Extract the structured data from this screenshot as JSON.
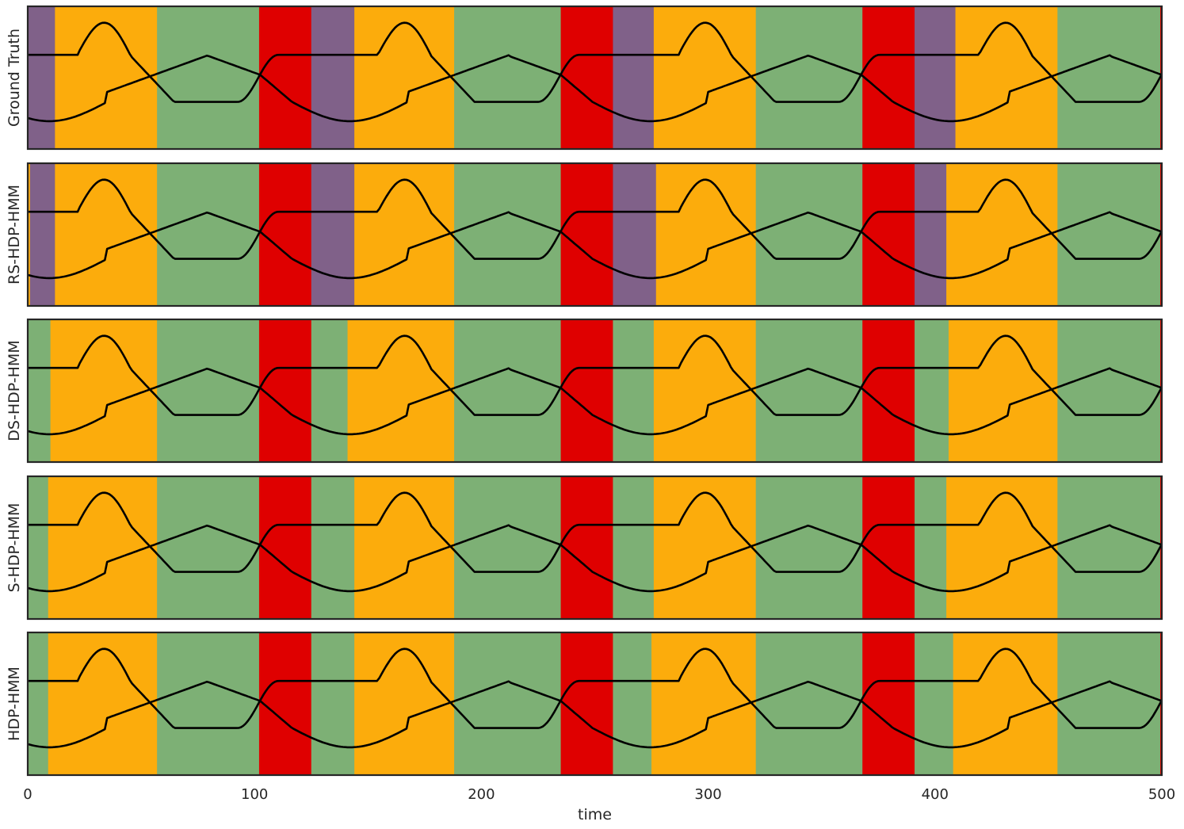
{
  "chart_data": {
    "type": "area",
    "xlabel": "time",
    "xlim": [
      0,
      500
    ],
    "x_ticks": [
      "0",
      "100",
      "200",
      "300",
      "400",
      "500"
    ],
    "state_colors": {
      "purple": "#806189",
      "orange": "#fcac0c",
      "green": "#7db075",
      "red": "#df0000",
      "line": "#000000",
      "frame": "#262626"
    },
    "panels": [
      {
        "ylabel": "Ground Truth",
        "segments": [
          {
            "start": 0,
            "end": 12,
            "state": "purple"
          },
          {
            "start": 12,
            "end": 57,
            "state": "orange"
          },
          {
            "start": 57,
            "end": 102,
            "state": "green"
          },
          {
            "start": 102,
            "end": 125,
            "state": "red"
          },
          {
            "start": 125,
            "end": 144,
            "state": "purple"
          },
          {
            "start": 144,
            "end": 188,
            "state": "orange"
          },
          {
            "start": 188,
            "end": 235,
            "state": "green"
          },
          {
            "start": 235,
            "end": 258,
            "state": "red"
          },
          {
            "start": 258,
            "end": 276,
            "state": "purple"
          },
          {
            "start": 276,
            "end": 321,
            "state": "orange"
          },
          {
            "start": 321,
            "end": 368,
            "state": "green"
          },
          {
            "start": 368,
            "end": 391,
            "state": "red"
          },
          {
            "start": 391,
            "end": 409,
            "state": "purple"
          },
          {
            "start": 409,
            "end": 454,
            "state": "orange"
          },
          {
            "start": 454,
            "end": 499.3,
            "state": "green"
          },
          {
            "start": 499.3,
            "end": 500,
            "state": "red"
          }
        ]
      },
      {
        "ylabel": "RS-HDP-HMM",
        "segments": [
          {
            "start": 0,
            "end": 1,
            "state": "orange"
          },
          {
            "start": 1,
            "end": 12,
            "state": "purple"
          },
          {
            "start": 12,
            "end": 57,
            "state": "orange"
          },
          {
            "start": 57,
            "end": 102,
            "state": "green"
          },
          {
            "start": 102,
            "end": 125,
            "state": "red"
          },
          {
            "start": 125,
            "end": 144,
            "state": "purple"
          },
          {
            "start": 144,
            "end": 188,
            "state": "orange"
          },
          {
            "start": 188,
            "end": 235,
            "state": "green"
          },
          {
            "start": 235,
            "end": 258,
            "state": "red"
          },
          {
            "start": 258,
            "end": 277,
            "state": "purple"
          },
          {
            "start": 277,
            "end": 321,
            "state": "orange"
          },
          {
            "start": 321,
            "end": 368,
            "state": "green"
          },
          {
            "start": 368,
            "end": 391,
            "state": "red"
          },
          {
            "start": 391,
            "end": 405,
            "state": "purple"
          },
          {
            "start": 405,
            "end": 454,
            "state": "orange"
          },
          {
            "start": 454,
            "end": 499.3,
            "state": "green"
          },
          {
            "start": 499.3,
            "end": 500,
            "state": "red"
          }
        ]
      },
      {
        "ylabel": "DS-HDP-HMM",
        "segments": [
          {
            "start": 0,
            "end": 10,
            "state": "green"
          },
          {
            "start": 10,
            "end": 57,
            "state": "orange"
          },
          {
            "start": 57,
            "end": 102,
            "state": "green"
          },
          {
            "start": 102,
            "end": 125,
            "state": "red"
          },
          {
            "start": 125,
            "end": 141,
            "state": "green"
          },
          {
            "start": 141,
            "end": 188,
            "state": "orange"
          },
          {
            "start": 188,
            "end": 235,
            "state": "green"
          },
          {
            "start": 235,
            "end": 258,
            "state": "red"
          },
          {
            "start": 258,
            "end": 276,
            "state": "green"
          },
          {
            "start": 276,
            "end": 321,
            "state": "orange"
          },
          {
            "start": 321,
            "end": 368,
            "state": "green"
          },
          {
            "start": 368,
            "end": 391,
            "state": "red"
          },
          {
            "start": 391,
            "end": 406,
            "state": "green"
          },
          {
            "start": 406,
            "end": 454,
            "state": "orange"
          },
          {
            "start": 454,
            "end": 499.3,
            "state": "green"
          },
          {
            "start": 499.3,
            "end": 500,
            "state": "red"
          }
        ]
      },
      {
        "ylabel": "S-HDP-HMM",
        "segments": [
          {
            "start": 0,
            "end": 9,
            "state": "green"
          },
          {
            "start": 9,
            "end": 57,
            "state": "orange"
          },
          {
            "start": 57,
            "end": 102,
            "state": "green"
          },
          {
            "start": 102,
            "end": 125,
            "state": "red"
          },
          {
            "start": 125,
            "end": 144,
            "state": "green"
          },
          {
            "start": 144,
            "end": 188,
            "state": "orange"
          },
          {
            "start": 188,
            "end": 235,
            "state": "green"
          },
          {
            "start": 235,
            "end": 258,
            "state": "red"
          },
          {
            "start": 258,
            "end": 276,
            "state": "green"
          },
          {
            "start": 276,
            "end": 321,
            "state": "orange"
          },
          {
            "start": 321,
            "end": 368,
            "state": "green"
          },
          {
            "start": 368,
            "end": 391,
            "state": "red"
          },
          {
            "start": 391,
            "end": 405,
            "state": "green"
          },
          {
            "start": 405,
            "end": 454,
            "state": "orange"
          },
          {
            "start": 454,
            "end": 499.3,
            "state": "green"
          },
          {
            "start": 499.3,
            "end": 500,
            "state": "red"
          }
        ]
      },
      {
        "ylabel": "HDP-HMM",
        "segments": [
          {
            "start": 0,
            "end": 9,
            "state": "green"
          },
          {
            "start": 9,
            "end": 57,
            "state": "orange"
          },
          {
            "start": 57,
            "end": 102,
            "state": "green"
          },
          {
            "start": 102,
            "end": 125,
            "state": "red"
          },
          {
            "start": 125,
            "end": 144,
            "state": "green"
          },
          {
            "start": 144,
            "end": 188,
            "state": "orange"
          },
          {
            "start": 188,
            "end": 235,
            "state": "green"
          },
          {
            "start": 235,
            "end": 258,
            "state": "red"
          },
          {
            "start": 258,
            "end": 275,
            "state": "green"
          },
          {
            "start": 275,
            "end": 321,
            "state": "orange"
          },
          {
            "start": 321,
            "end": 368,
            "state": "green"
          },
          {
            "start": 368,
            "end": 391,
            "state": "red"
          },
          {
            "start": 391,
            "end": 408,
            "state": "green"
          },
          {
            "start": 408,
            "end": 454,
            "state": "orange"
          },
          {
            "start": 454,
            "end": 499.3,
            "state": "green"
          },
          {
            "start": 499.3,
            "end": 500,
            "state": "red"
          }
        ]
      }
    ]
  }
}
